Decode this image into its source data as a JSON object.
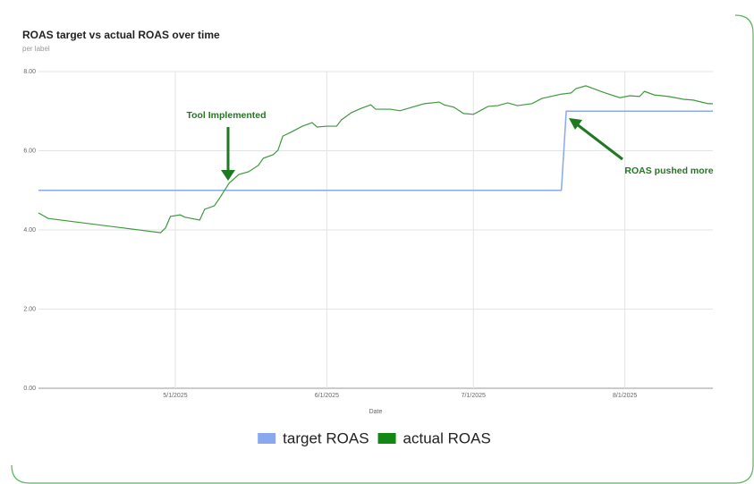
{
  "chart_data": {
    "type": "line",
    "title": "ROAS target vs actual ROAS over time",
    "subtitle": "per label",
    "x_label": "Date",
    "xlim": [
      "4/3/2025",
      "8/19/2025"
    ],
    "xticks": [
      "5/1/2025",
      "6/1/2025",
      "7/1/2025",
      "8/1/2025"
    ],
    "ylim": [
      0,
      8
    ],
    "yticks": [
      {
        "value": 0,
        "label": "0.00"
      },
      {
        "value": 2,
        "label": "2.00"
      },
      {
        "value": 4,
        "label": "4.00"
      },
      {
        "value": 6,
        "label": "6.00"
      },
      {
        "value": 8,
        "label": "8.00"
      }
    ],
    "grid": true,
    "legend": "bottom",
    "annotations": [
      "Tool Implemented",
      "ROAS pushed more"
    ],
    "series": [
      {
        "name": "target ROAS",
        "color": "#8aa8f0",
        "x": [
          "4/3/2025",
          "7/19/2025",
          "7/20/2025",
          "8/19/2025"
        ],
        "values": [
          5,
          5,
          7,
          7
        ]
      },
      {
        "name": "actual ROAS",
        "color": "#3d9a3d",
        "x": [
          "4/3/2025",
          "4/5/2025",
          "4/28/2025",
          "4/29/2025",
          "4/30/2025",
          "5/2/2025",
          "5/3/2025",
          "5/6/2025",
          "5/7/2025",
          "5/9/2025",
          "5/10/2025",
          "5/12/2025",
          "5/14/2025",
          "5/16/2025",
          "5/18/2025",
          "5/19/2025",
          "5/21/2025",
          "5/22/2025",
          "5/23/2025",
          "5/25/2025",
          "5/27/2025",
          "5/29/2025",
          "5/30/2025",
          "6/1/2025",
          "6/3/2025",
          "6/4/2025",
          "6/6/2025",
          "6/8/2025",
          "6/10/2025",
          "6/11/2025",
          "6/14/2025",
          "6/16/2025",
          "6/19/2025",
          "6/21/2025",
          "6/24/2025",
          "6/25/2025",
          "6/27/2025",
          "6/29/2025",
          "7/1/2025",
          "7/4/2025",
          "7/6/2025",
          "7/8/2025",
          "7/10/2025",
          "7/13/2025",
          "7/15/2025",
          "7/19/2025",
          "7/21/2025",
          "7/22/2025",
          "7/24/2025",
          "7/26/2025",
          "7/28/2025",
          "7/31/2025",
          "8/2/2025",
          "8/4/2025",
          "8/5/2025",
          "8/7/2025",
          "8/10/2025",
          "8/13/2025",
          "8/15/2025",
          "8/18/2025",
          "8/19/2025"
        ],
        "values": [
          4.43,
          4.29,
          3.93,
          4.05,
          4.34,
          4.38,
          4.32,
          4.25,
          4.52,
          4.61,
          4.79,
          5.18,
          5.4,
          5.47,
          5.63,
          5.81,
          5.9,
          6.01,
          6.37,
          6.49,
          6.62,
          6.71,
          6.6,
          6.62,
          6.62,
          6.78,
          6.96,
          7.07,
          7.16,
          7.05,
          7.05,
          7.01,
          7.12,
          7.19,
          7.23,
          7.16,
          7.1,
          6.94,
          6.92,
          7.12,
          7.14,
          7.21,
          7.14,
          7.19,
          7.32,
          7.43,
          7.46,
          7.57,
          7.64,
          7.55,
          7.46,
          7.34,
          7.39,
          7.37,
          7.5,
          7.41,
          7.37,
          7.3,
          7.28,
          7.19,
          7.19
        ]
      }
    ]
  }
}
